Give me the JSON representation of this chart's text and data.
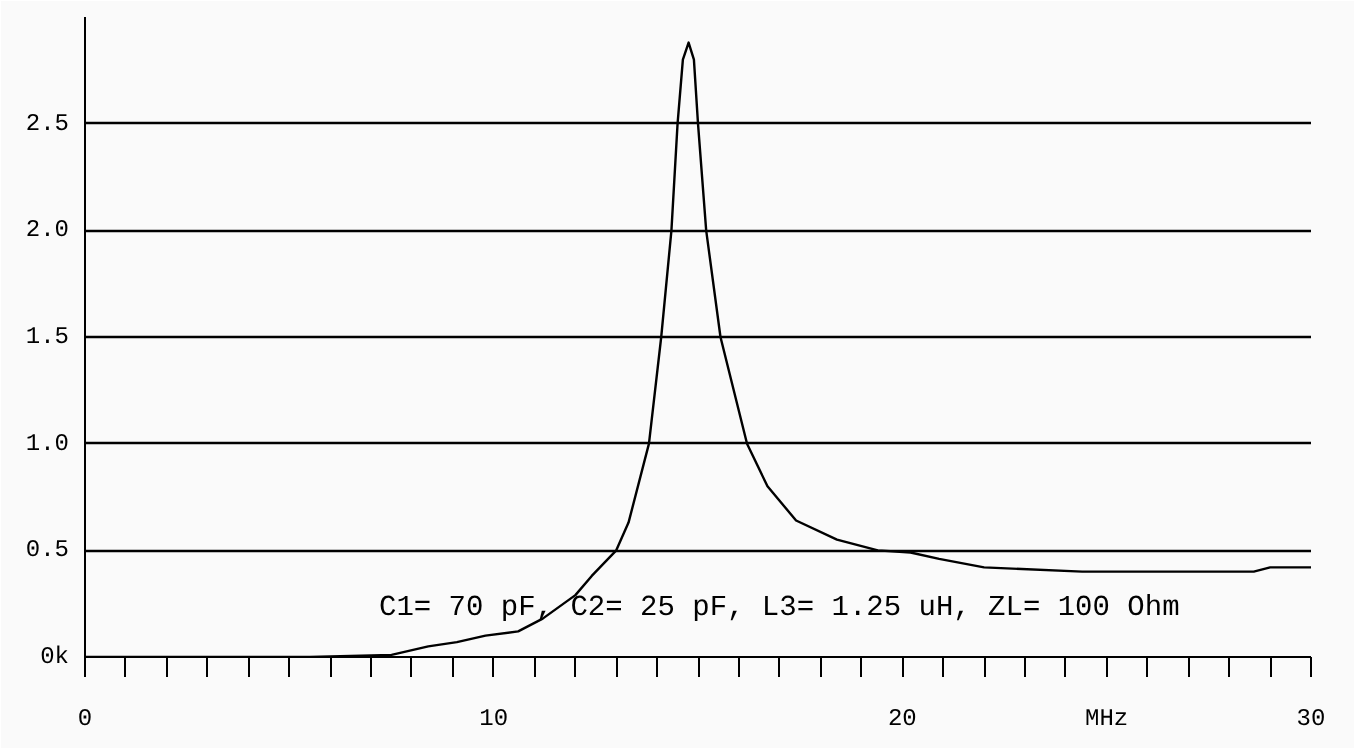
{
  "chart_data": {
    "type": "line",
    "x": [
      0,
      5.5,
      7.5,
      8.4,
      9.1,
      9.8,
      10.6,
      11.2,
      12.0,
      12.4,
      13.0,
      13.3,
      13.8,
      14.1,
      14.35,
      14.5,
      14.63,
      14.77,
      14.9,
      15.0,
      15.2,
      15.55,
      16.2,
      16.7,
      17.4,
      18.4,
      19.4,
      20.2,
      20.9,
      22.0,
      24.4,
      28.6,
      29.0,
      30
    ],
    "series": [
      {
        "color": "#000000",
        "values": [
          0,
          0,
          0.01,
          0.05,
          0.07,
          0.1,
          0.12,
          0.18,
          0.29,
          0.38,
          0.5,
          0.63,
          1.0,
          1.5,
          2.0,
          2.5,
          2.8,
          2.88,
          2.8,
          2.5,
          2.0,
          1.5,
          1.0,
          0.8,
          0.64,
          0.55,
          0.5,
          0.49,
          0.46,
          0.42,
          0.4,
          0.4,
          0.42,
          0.42
        ]
      }
    ],
    "xlim": [
      0,
      30
    ],
    "ylim": [
      0,
      3
    ],
    "xticks": [
      0,
      {
        "value": 1,
        "label": null
      },
      {
        "value": 2,
        "label": null
      },
      {
        "value": 3,
        "label": null
      },
      {
        "value": 4,
        "label": null
      },
      {
        "value": 5,
        "label": null
      },
      {
        "value": 6,
        "label": null
      },
      {
        "value": 7,
        "label": null
      },
      {
        "value": 8,
        "label": null
      },
      {
        "value": 9,
        "label": null
      },
      10,
      {
        "value": 11,
        "label": null
      },
      {
        "value": 12,
        "label": null
      },
      {
        "value": 13,
        "label": null
      },
      {
        "value": 14,
        "label": null
      },
      {
        "value": 15,
        "label": null
      },
      {
        "value": 16,
        "label": null
      },
      {
        "value": 17,
        "label": null
      },
      {
        "value": 18,
        "label": null
      },
      {
        "value": 19,
        "label": null
      },
      20,
      {
        "value": 21,
        "label": null
      },
      {
        "value": 22,
        "label": null
      },
      {
        "value": 23,
        "label": null
      },
      {
        "value": 24,
        "label": null
      },
      {
        "value": 25,
        "label": "MHz"
      },
      {
        "value": 26,
        "label": null
      },
      {
        "value": 27,
        "label": null
      },
      {
        "value": 28,
        "label": null
      },
      {
        "value": 29,
        "label": null
      },
      30
    ],
    "yticks": [
      {
        "value": 0,
        "label": "0k"
      },
      0.5,
      {
        "value": 1,
        "label": "1.0"
      },
      1.5,
      {
        "value": 2,
        "label": "2.0"
      },
      2.5
    ],
    "grid": "y",
    "line_style": "solid",
    "annotations": [
      "C1= 70 pF,    C2= 25 pF,    L3= 1.25 uH,   ZL= 100 Ohm"
    ]
  }
}
